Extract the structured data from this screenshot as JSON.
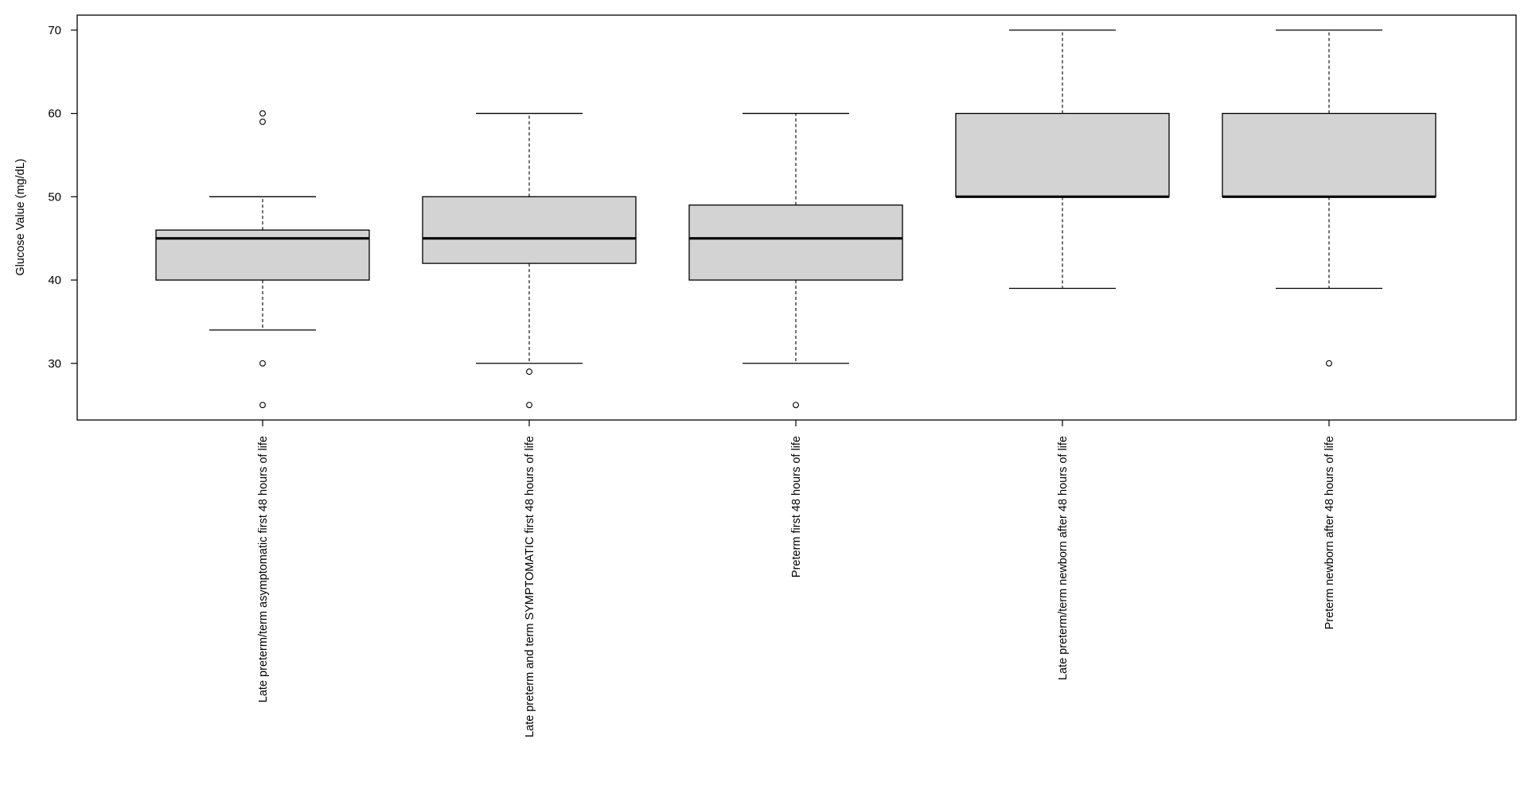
{
  "chart_data": {
    "type": "boxplot",
    "title": "",
    "ylabel": "Glucose Value (mg/dL)",
    "xlabel": "",
    "ylim": [
      23.2,
      71.8
    ],
    "yticks": [
      30,
      40,
      50,
      60,
      70
    ],
    "grid": false,
    "legend": "none",
    "box_fill": "#d3d3d3",
    "categories": [
      "Late preterm/term asymptomatic first 48 hours of life",
      "Late preterm and term SYMPTOMATIC first 48 hours of life",
      "Preterm first 48 hours of life",
      "Late preterm/term newborn after 48 hours of life",
      "Preterm newborn after 48 hours of life"
    ],
    "boxes": [
      {
        "whisker_low": 34,
        "q1": 40,
        "median": 45,
        "q3": 46,
        "whisker_high": 50,
        "outliers": [
          60,
          59,
          30,
          25
        ]
      },
      {
        "whisker_low": 30,
        "q1": 42,
        "median": 45,
        "q3": 50,
        "whisker_high": 60,
        "outliers": [
          29,
          25
        ]
      },
      {
        "whisker_low": 30,
        "q1": 40,
        "median": 45,
        "q3": 49,
        "whisker_high": 60,
        "outliers": [
          25
        ]
      },
      {
        "whisker_low": 39,
        "q1": 50,
        "median": 50,
        "q3": 60,
        "whisker_high": 70,
        "outliers": []
      },
      {
        "whisker_low": 39,
        "q1": 50,
        "median": 50,
        "q3": 60,
        "whisker_high": 70,
        "outliers": [
          30
        ]
      }
    ]
  }
}
